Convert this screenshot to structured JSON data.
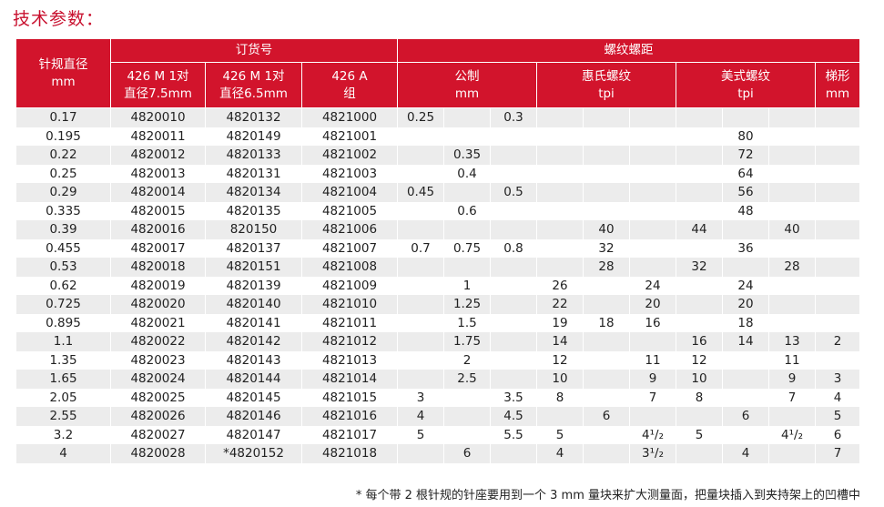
{
  "title": "技术参数：",
  "header": {
    "needle_dia": "针规直径",
    "needle_unit": "mm",
    "order_no": "订货号",
    "thread_pitch": "螺纹螺距",
    "c1_a": "426 M 1对",
    "c1_b": "直径7.5mm",
    "c2_a": "426 M 1对",
    "c2_b": "直径6.5mm",
    "c3_a": "426 A",
    "c3_b": "组",
    "metric": "公制",
    "metric_unit": "mm",
    "whitworth": "惠氏螺纹",
    "whitworth_unit": "tpi",
    "american": "美式螺纹",
    "american_unit": "tpi",
    "trapezoid": "梯形",
    "trapezoid_unit": "mm"
  },
  "rows": [
    [
      "0.17",
      "4820010",
      "4820132",
      "4821000",
      "0.25",
      "",
      "0.3",
      "",
      "",
      "",
      "",
      "",
      "",
      ""
    ],
    [
      "0.195",
      "4820011",
      "4820149",
      "4821001",
      "",
      "",
      "",
      "",
      "",
      "",
      "",
      "80",
      "",
      ""
    ],
    [
      "0.22",
      "4820012",
      "4820133",
      "4821002",
      "",
      "0.35",
      "",
      "",
      "",
      "",
      "",
      "72",
      "",
      ""
    ],
    [
      "0.25",
      "4820013",
      "4820131",
      "4821003",
      "",
      "0.4",
      "",
      "",
      "",
      "",
      "",
      "64",
      "",
      ""
    ],
    [
      "0.29",
      "4820014",
      "4820134",
      "4821004",
      "0.45",
      "",
      "0.5",
      "",
      "",
      "",
      "",
      "56",
      "",
      ""
    ],
    [
      "0.335",
      "4820015",
      "4820135",
      "4821005",
      "",
      "0.6",
      "",
      "",
      "",
      "",
      "",
      "48",
      "",
      ""
    ],
    [
      "0.39",
      "4820016",
      "820150",
      "4821006",
      "",
      "",
      "",
      "",
      "40",
      "",
      "44",
      "",
      "40",
      ""
    ],
    [
      "0.455",
      "4820017",
      "4820137",
      "4821007",
      "0.7",
      "0.75",
      "0.8",
      "",
      "32",
      "",
      "",
      "36",
      "",
      ""
    ],
    [
      "0.53",
      "4820018",
      "4820151",
      "4821008",
      "",
      "",
      "",
      "",
      "28",
      "",
      "32",
      "",
      "28",
      ""
    ],
    [
      "0.62",
      "4820019",
      "4820139",
      "4821009",
      "",
      "1",
      "",
      "26",
      "",
      "24",
      "",
      "24",
      "",
      ""
    ],
    [
      "0.725",
      "4820020",
      "4820140",
      "4821010",
      "",
      "1.25",
      "",
      "22",
      "",
      "20",
      "",
      "20",
      "",
      ""
    ],
    [
      "0.895",
      "4820021",
      "4820141",
      "4821011",
      "",
      "1.5",
      "",
      "19",
      "18",
      "16",
      "",
      "18",
      "",
      ""
    ],
    [
      "1.1",
      "4820022",
      "4820142",
      "4821012",
      "",
      "1.75",
      "",
      "14",
      "",
      "",
      "16",
      "14",
      "13",
      "2"
    ],
    [
      "1.35",
      "4820023",
      "4820143",
      "4821013",
      "",
      "2",
      "",
      "12",
      "",
      "11",
      "12",
      "",
      "11",
      ""
    ],
    [
      "1.65",
      "4820024",
      "4820144",
      "4821014",
      "",
      "2.5",
      "",
      "10",
      "",
      "9",
      "10",
      "",
      "9",
      "3"
    ],
    [
      "2.05",
      "4820025",
      "4820145",
      "4821015",
      "3",
      "",
      "3.5",
      "8",
      "",
      "7",
      "8",
      "",
      "7",
      "4"
    ],
    [
      "2.55",
      "4820026",
      "4820146",
      "4821016",
      "4",
      "",
      "4.5",
      "",
      "6",
      "",
      "",
      "6",
      "",
      "5"
    ],
    [
      "3.2",
      "4820027",
      "4820147",
      "4821017",
      "5",
      "",
      "5.5",
      "5",
      "",
      "4¹/₂",
      "5",
      "",
      "4¹/₂",
      "6"
    ],
    [
      "4",
      "4820028",
      "*4820152",
      "4821018",
      "",
      "6",
      "",
      "4",
      "",
      "3¹/₂",
      "",
      "4",
      "",
      "7"
    ]
  ],
  "footnote": "* 每个带 2 根针规的针座要用到一个 3 mm 量块来扩大测量面，把量块插入到夹持架上的凹槽中",
  "colors": {
    "header_red": "#d2142c",
    "stripe_gray": "#ececec",
    "title_red": "#c8102e"
  }
}
